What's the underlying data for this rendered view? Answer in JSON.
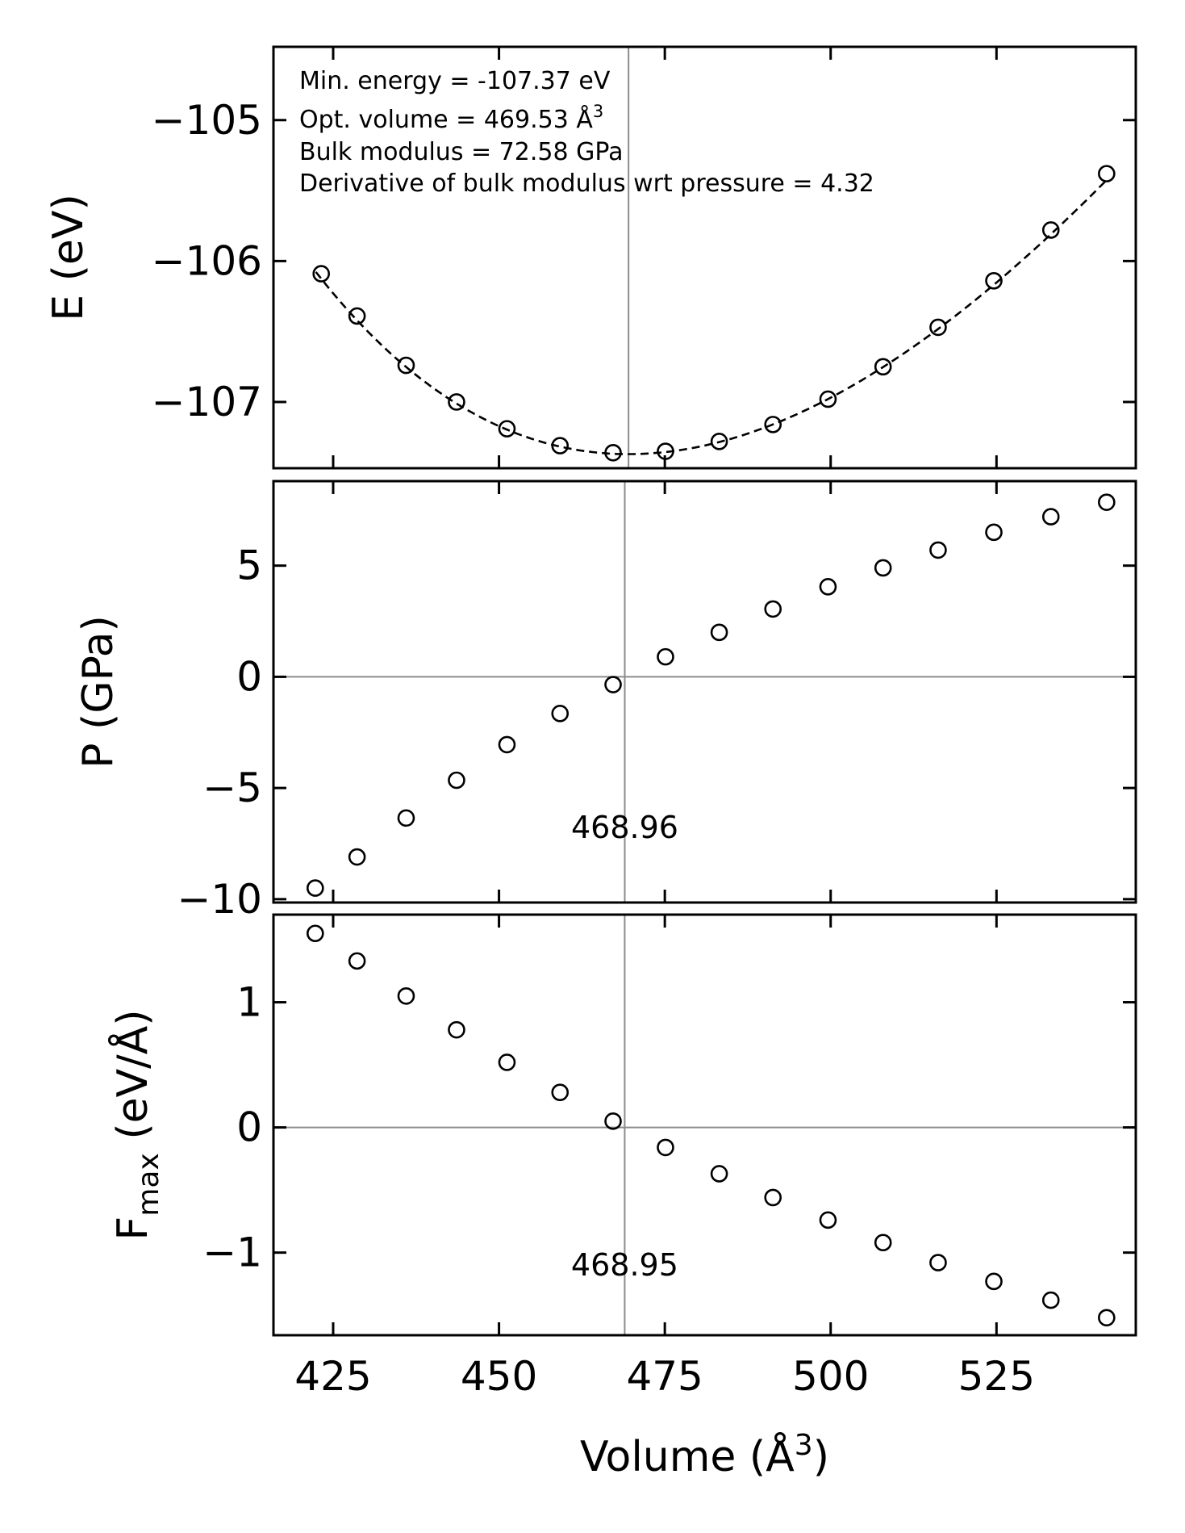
{
  "chart_data": [
    {
      "type": "scatter",
      "ylabel": "E (eV)",
      "xlim": [
        416,
        546
      ],
      "ylim": [
        -107.47,
        -104.48
      ],
      "yticks": [
        {
          "value": -105,
          "label": "−105"
        },
        {
          "value": -106,
          "label": "−106"
        },
        {
          "value": -107,
          "label": "−107"
        }
      ],
      "annotations": [
        "Min. energy = -107.37 eV",
        "Opt. volume = 469.53 Å³",
        "Bulk modulus = 72.58 GPa",
        "Derivative of bulk modulus wrt pressure = 4.32"
      ],
      "vline": 469.53,
      "fit": {
        "style": "dashed",
        "E0": -107.37,
        "V0": 469.53,
        "B0_GPa": 72.58,
        "B0prime": 4.32,
        "x_range": [
          422.4,
          541.6
        ]
      },
      "series": [
        {
          "x": [
            423.2,
            428.6,
            436.0,
            443.6,
            451.2,
            459.2,
            467.2,
            475.1,
            483.2,
            491.3,
            499.6,
            507.9,
            516.2,
            524.6,
            533.2,
            541.6
          ],
          "y": [
            -106.09,
            -106.39,
            -106.74,
            -107.0,
            -107.19,
            -107.31,
            -107.36,
            -107.35,
            -107.28,
            -107.16,
            -106.98,
            -106.75,
            -106.47,
            -106.14,
            -105.78,
            -105.38
          ]
        }
      ]
    },
    {
      "type": "scatter",
      "ylabel": "P (GPa)",
      "xlim": [
        416,
        546
      ],
      "ylim": [
        -10.15,
        8.8
      ],
      "yticks": [
        {
          "value": 5,
          "label": "5"
        },
        {
          "value": 0,
          "label": "0"
        },
        {
          "value": -5,
          "label": "−5"
        },
        {
          "value": -10,
          "label": "−10"
        }
      ],
      "hline": 0,
      "vline": 468.96,
      "vline_label": "468.96",
      "series": [
        {
          "x": [
            422.3,
            428.6,
            436.0,
            443.6,
            451.2,
            459.2,
            467.2,
            475.1,
            483.2,
            491.3,
            499.6,
            507.9,
            516.2,
            524.6,
            533.2,
            541.6
          ],
          "y": [
            -9.5,
            -8.1,
            -6.35,
            -4.65,
            -3.05,
            -1.65,
            -0.35,
            0.9,
            2.0,
            3.05,
            4.05,
            4.9,
            5.7,
            6.5,
            7.2,
            7.85
          ]
        }
      ]
    },
    {
      "type": "scatter",
      "ylabel": "F<sub>max</sub> (eV/Å)",
      "ylabel_main": "F",
      "ylabel_sub": "max",
      "ylabel_rest": " (eV/Å)",
      "xlabel": "Volume (Å³)",
      "xlim": [
        416,
        546
      ],
      "ylim": [
        -1.66,
        1.7
      ],
      "xticks": [
        {
          "value": 425,
          "label": "425"
        },
        {
          "value": 450,
          "label": "450"
        },
        {
          "value": 475,
          "label": "475"
        },
        {
          "value": 500,
          "label": "500"
        },
        {
          "value": 525,
          "label": "525"
        }
      ],
      "yticks": [
        {
          "value": 1,
          "label": "1"
        },
        {
          "value": 0,
          "label": "0"
        },
        {
          "value": -1,
          "label": "−1"
        }
      ],
      "hline": 0,
      "vline": 468.95,
      "vline_label": "468.95",
      "series": [
        {
          "x": [
            422.3,
            428.6,
            436.0,
            443.6,
            451.2,
            459.2,
            467.2,
            475.1,
            483.2,
            491.3,
            499.6,
            507.9,
            516.2,
            524.6,
            533.2,
            541.6
          ],
          "y": [
            1.55,
            1.33,
            1.05,
            0.78,
            0.52,
            0.28,
            0.05,
            -0.16,
            -0.37,
            -0.56,
            -0.74,
            -0.92,
            -1.08,
            -1.23,
            -1.38,
            -1.52
          ]
        }
      ]
    }
  ]
}
